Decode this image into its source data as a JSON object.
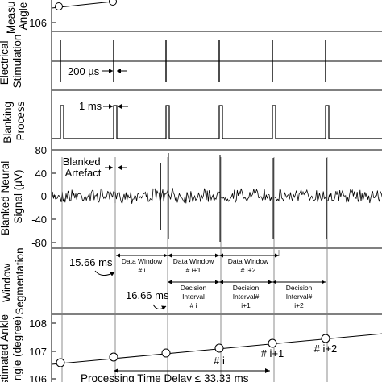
{
  "panels": {
    "measured_angle": {
      "label_line1": "Measu",
      "label_line2": "Angle",
      "tick_106": "106"
    },
    "electrical_stimulation": {
      "label_line1": "Electrical",
      "label_line2": "Stimulation",
      "pulse_width_label": "200 µs"
    },
    "blanking_process": {
      "label_line1": "Blanking",
      "label_line2": "Process",
      "blank_width_label": "1 ms"
    },
    "blanked_neural_signal": {
      "label_line1": "Blanked Neural",
      "label_line2": "Signal (µV)",
      "ticks": [
        "80",
        "40",
        "0",
        "-40",
        "-80"
      ],
      "artefact_label_line1": "Blanked",
      "artefact_label_line2": "Artefact"
    },
    "window_segmentation": {
      "label_line1": "Window",
      "label_line2": "Segmentation",
      "window_period_label": "15.66 ms",
      "decision_period_label": "16.66 ms",
      "data_windows": [
        {
          "line1": "Data Window",
          "line2": "# i"
        },
        {
          "line1": "Data Window",
          "line2": "# i+1"
        },
        {
          "line1": "Data Window",
          "line2": "# i+2"
        }
      ],
      "decision_intervals": [
        {
          "line1": "Decision",
          "line2": "Interval",
          "line3": "# i"
        },
        {
          "line1": "Decision",
          "line2": "Interval#",
          "line3": "i+1"
        },
        {
          "line1": "Decision",
          "line2": "Interval#",
          "line3": "i+2"
        }
      ]
    },
    "estimated_angle": {
      "label_line1": "stimated Ankle",
      "label_line2": "ngle (degree)",
      "ticks": [
        "108",
        "107",
        "106"
      ],
      "point_labels": [
        "# i",
        "# i+1",
        "# i+2"
      ],
      "delay_label": "Processing Time Delay ≤ 33.33 ms"
    }
  },
  "colors": {
    "axis": "#000000",
    "grid": "#808080",
    "signal": "#000000"
  }
}
